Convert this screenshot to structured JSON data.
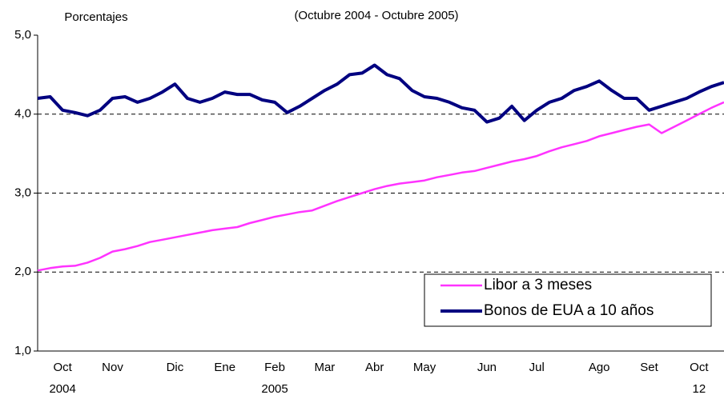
{
  "chart_data": {
    "type": "line",
    "title": "(Octubre 2004 - Octubre 2005)",
    "y_label": "Porcentajes",
    "categories": [
      null,
      null,
      "Oct",
      null,
      null,
      null,
      "Nov",
      null,
      null,
      null,
      null,
      "Dic",
      null,
      null,
      null,
      "Ene",
      null,
      null,
      null,
      "Feb",
      null,
      null,
      null,
      "Mar",
      null,
      null,
      null,
      "Abr",
      null,
      null,
      null,
      "May",
      null,
      null,
      null,
      null,
      "Jun",
      null,
      null,
      null,
      "Jul",
      null,
      null,
      null,
      null,
      "Ago",
      null,
      null,
      null,
      "Set",
      null,
      null,
      null,
      "Oct",
      null,
      null
    ],
    "category_sublabels": [
      null,
      null,
      "2004",
      null,
      null,
      null,
      null,
      null,
      null,
      null,
      null,
      null,
      null,
      null,
      null,
      null,
      null,
      null,
      null,
      "2005",
      null,
      null,
      null,
      null,
      null,
      null,
      null,
      null,
      null,
      null,
      null,
      null,
      null,
      null,
      null,
      null,
      null,
      null,
      null,
      null,
      null,
      null,
      null,
      null,
      null,
      null,
      null,
      null,
      null,
      null,
      null,
      null,
      null,
      "12",
      null,
      null
    ],
    "series": [
      {
        "name": "Libor a 3 meses",
        "color": "#ff33ff",
        "width": 2.5,
        "values": [
          2.02,
          2.05,
          2.07,
          2.08,
          2.12,
          2.18,
          2.26,
          2.29,
          2.33,
          2.38,
          2.41,
          2.44,
          2.47,
          2.5,
          2.53,
          2.55,
          2.57,
          2.62,
          2.66,
          2.7,
          2.73,
          2.76,
          2.78,
          2.84,
          2.9,
          2.95,
          3.0,
          3.05,
          3.09,
          3.12,
          3.14,
          3.16,
          3.2,
          3.23,
          3.26,
          3.28,
          3.32,
          3.36,
          3.4,
          3.43,
          3.47,
          3.53,
          3.58,
          3.62,
          3.66,
          3.72,
          3.76,
          3.8,
          3.84,
          3.87,
          3.76,
          3.84,
          3.92,
          4.0,
          4.08,
          4.15
        ]
      },
      {
        "name": "Bonos de EUA a 10 años",
        "color": "#000080",
        "width": 4,
        "values": [
          4.2,
          4.22,
          4.05,
          4.02,
          3.98,
          4.05,
          4.2,
          4.22,
          4.15,
          4.2,
          4.28,
          4.38,
          4.2,
          4.15,
          4.2,
          4.28,
          4.25,
          4.25,
          4.18,
          4.15,
          4.02,
          4.1,
          4.2,
          4.3,
          4.38,
          4.5,
          4.52,
          4.62,
          4.5,
          4.45,
          4.3,
          4.22,
          4.2,
          4.15,
          4.08,
          4.05,
          3.9,
          3.95,
          4.1,
          3.92,
          4.05,
          4.15,
          4.2,
          4.3,
          4.35,
          4.42,
          4.3,
          4.2,
          4.2,
          4.05,
          4.1,
          4.15,
          4.2,
          4.28,
          4.35,
          4.4
        ]
      }
    ],
    "ylim": [
      1,
      5
    ],
    "yticks": [
      {
        "value": 1,
        "label": "1,0"
      },
      {
        "value": 2,
        "label": "2,0"
      },
      {
        "value": 3,
        "label": "3,0"
      },
      {
        "value": 4,
        "label": "4,0"
      },
      {
        "value": 5,
        "label": "5,0"
      }
    ],
    "grid": true,
    "legend": "lower right"
  }
}
